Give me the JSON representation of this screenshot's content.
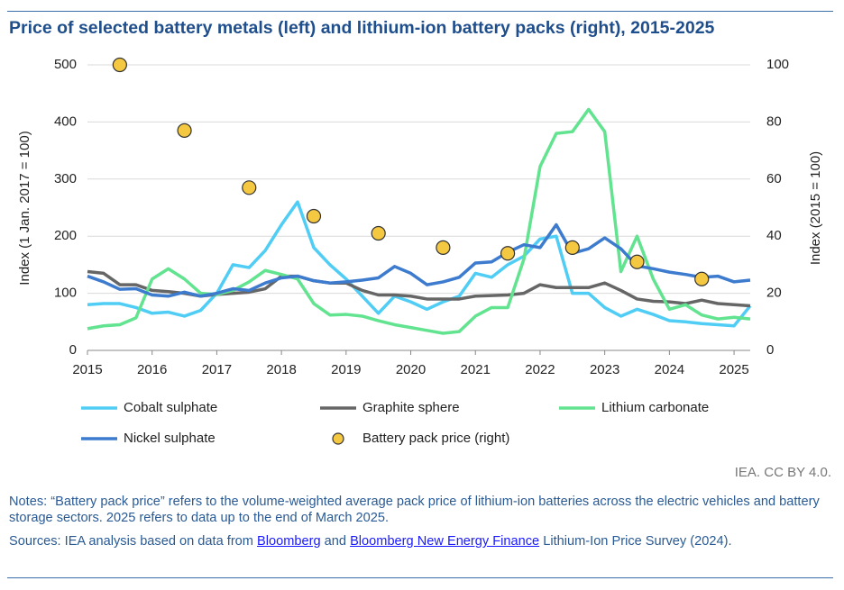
{
  "chart_data": {
    "type": "line",
    "title": "Price of selected battery metals (left) and lithium-ion battery packs (right), 2015-2025",
    "y_label": "Index (1 Jan. 2017 = 100)",
    "y2_label": "Index (2015 = 100)",
    "xlim": [
      2015,
      2025.25
    ],
    "xticks": [
      2015,
      2016,
      2017,
      2018,
      2019,
      2020,
      2021,
      2022,
      2023,
      2024,
      2025
    ],
    "ylim": [
      0,
      500
    ],
    "yticks": [
      0,
      100,
      200,
      300,
      400,
      500
    ],
    "y2lim": [
      0,
      100
    ],
    "y2ticks": [
      0,
      20,
      40,
      60,
      80,
      100
    ],
    "grid": true,
    "x": [
      2015,
      2015.25,
      2015.5,
      2015.75,
      2016,
      2016.25,
      2016.5,
      2016.75,
      2017,
      2017.25,
      2017.5,
      2017.75,
      2018,
      2018.25,
      2018.5,
      2018.75,
      2019,
      2019.25,
      2019.5,
      2019.75,
      2020,
      2020.25,
      2020.5,
      2020.75,
      2021,
      2021.25,
      2021.5,
      2021.75,
      2022,
      2022.25,
      2022.5,
      2022.75,
      2023,
      2023.25,
      2023.5,
      2023.75,
      2024,
      2024.25,
      2024.5,
      2024.75,
      2025,
      2025.25
    ],
    "series": [
      {
        "name": "Cobalt sulphate",
        "color": "#4fcdf5",
        "values": [
          80,
          82,
          82,
          75,
          65,
          67,
          60,
          70,
          100,
          150,
          145,
          175,
          220,
          260,
          180,
          150,
          125,
          95,
          65,
          95,
          85,
          72,
          85,
          95,
          135,
          128,
          150,
          165,
          195,
          200,
          100,
          100,
          75,
          60,
          72,
          63,
          52,
          50,
          47,
          45,
          43,
          78
        ]
      },
      {
        "name": "Graphite sphere",
        "color": "#666666",
        "values": [
          138,
          135,
          115,
          115,
          105,
          103,
          100,
          95,
          98,
          100,
          102,
          108,
          130,
          130,
          122,
          118,
          118,
          105,
          97,
          97,
          95,
          90,
          90,
          90,
          95,
          96,
          97,
          100,
          115,
          110,
          110,
          110,
          118,
          105,
          90,
          86,
          85,
          82,
          88,
          82,
          80,
          78
        ]
      },
      {
        "name": "Lithium carbonate",
        "color": "#62e38f",
        "values": [
          38,
          43,
          45,
          57,
          125,
          143,
          125,
          100,
          98,
          105,
          120,
          140,
          133,
          125,
          82,
          62,
          63,
          60,
          52,
          45,
          40,
          35,
          30,
          33,
          60,
          75,
          75,
          160,
          322,
          380,
          383,
          422,
          383,
          138,
          200,
          125,
          72,
          80,
          62,
          55,
          58,
          55
        ]
      },
      {
        "name": "Nickel sulphate",
        "color": "#3d7bcf",
        "values": [
          130,
          120,
          107,
          108,
          97,
          95,
          102,
          95,
          100,
          108,
          105,
          118,
          127,
          130,
          122,
          118,
          120,
          123,
          127,
          147,
          135,
          115,
          120,
          128,
          153,
          155,
          172,
          185,
          180,
          220,
          170,
          178,
          197,
          178,
          148,
          143,
          137,
          133,
          128,
          130,
          120,
          123
        ]
      },
      {
        "name": "Battery pack price (right)",
        "color": "#f5c842",
        "type": "scatter",
        "axis": "y2",
        "x": [
          2015.5,
          2016.5,
          2017.5,
          2018.5,
          2019.5,
          2020.5,
          2021.5,
          2022.5,
          2023.5,
          2024.5
        ],
        "values": [
          100,
          77,
          57,
          47,
          41,
          36,
          34,
          36,
          31,
          25
        ]
      }
    ]
  },
  "credit": "IEA. CC BY 4.0.",
  "notes": "Notes: “Battery pack price” refers to the volume-weighted average pack price of lithium-ion batteries across the electric vehicles and battery storage sectors. 2025 refers to data up to the end of March 2025.",
  "sources": {
    "prefix": "Sources: IEA analysis based on data from",
    "link1": "Bloomberg",
    "and": "and",
    "link2": "Bloomberg New Energy Finance",
    "suffix": "Lithium-Ion Price Survey (2024)."
  }
}
